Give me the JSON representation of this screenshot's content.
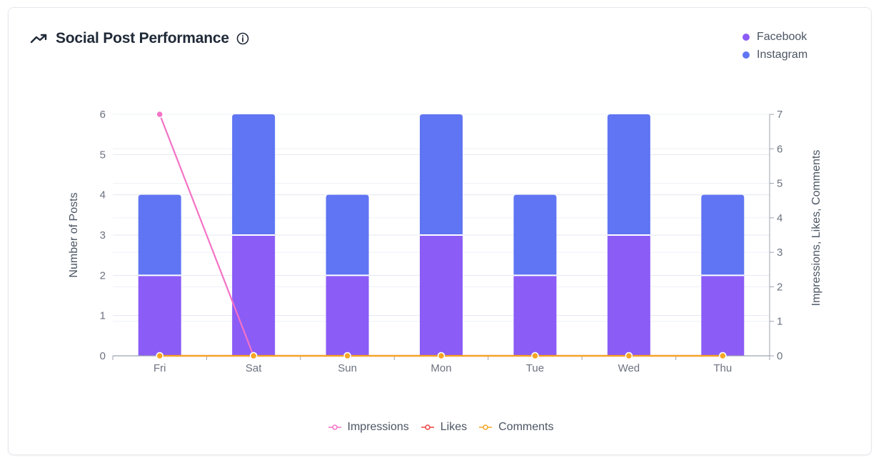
{
  "header": {
    "title": "Social Post Performance",
    "trend_icon": "trending-up-icon",
    "info_icon": "info-icon"
  },
  "legend_top": [
    {
      "label": "Facebook",
      "color": "#8b5cf6"
    },
    {
      "label": "Instagram",
      "color": "#6075f3"
    }
  ],
  "legend_bottom": [
    {
      "label": "Impressions",
      "color": "#f472c6"
    },
    {
      "label": "Likes",
      "color": "#ef4444"
    },
    {
      "label": "Comments",
      "color": "#f5a623"
    }
  ],
  "chart_data": {
    "type": "bar",
    "categories": [
      "Fri",
      "Sat",
      "Sun",
      "Mon",
      "Tue",
      "Wed",
      "Thu"
    ],
    "stacked": true,
    "series": [
      {
        "name": "Facebook",
        "values": [
          2,
          3,
          2,
          3,
          2,
          3,
          2
        ],
        "color": "#8b5cf6",
        "axis": "left"
      },
      {
        "name": "Instagram",
        "values": [
          2,
          3,
          2,
          3,
          2,
          3,
          2
        ],
        "color": "#6075f3",
        "axis": "left"
      }
    ],
    "line_series": [
      {
        "name": "Impressions",
        "values": [
          7,
          0,
          null,
          null,
          null,
          null,
          null
        ],
        "color": "#f472c6",
        "axis": "right"
      },
      {
        "name": "Likes",
        "values": [
          0,
          0,
          0,
          0,
          0,
          0,
          0
        ],
        "color": "#ef4444",
        "axis": "right"
      },
      {
        "name": "Comments",
        "values": [
          0,
          0,
          0,
          0,
          0,
          0,
          0
        ],
        "color": "#f5a623",
        "axis": "right"
      }
    ],
    "ylabel": "Number of Posts",
    "y2label": "Impressions, Likes, Comments",
    "ylim": [
      0,
      6
    ],
    "y2lim": [
      0,
      7
    ],
    "yticks": [
      0,
      1,
      2,
      3,
      4,
      5,
      6
    ],
    "y2ticks": [
      0,
      1,
      2,
      3,
      4,
      5,
      6,
      7
    ],
    "grid": true,
    "legend_position": "top-right"
  }
}
